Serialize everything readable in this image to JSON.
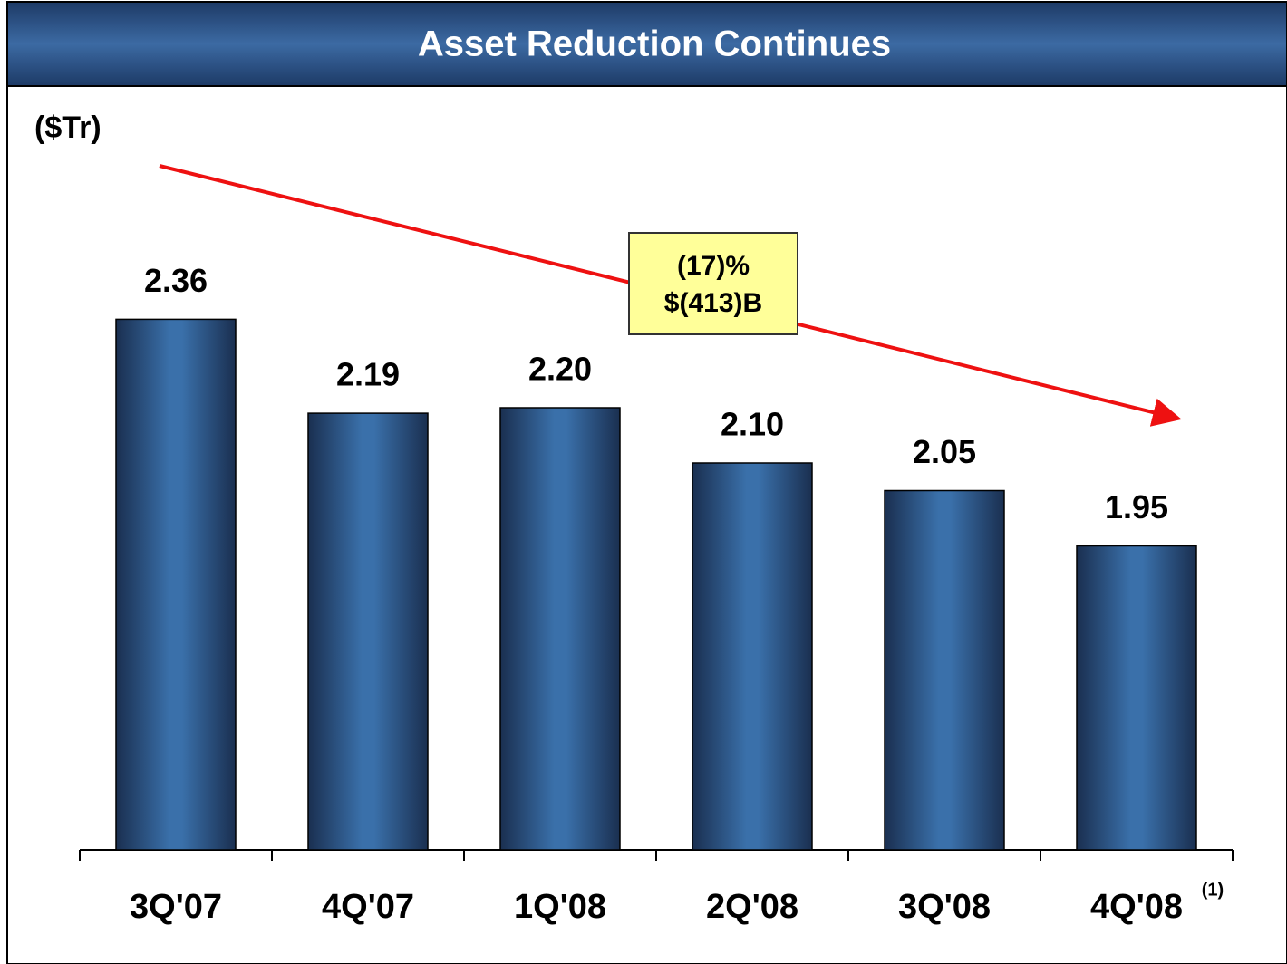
{
  "chart_data": {
    "type": "bar",
    "title": "Asset Reduction Continues",
    "unit_label": "($Tr)",
    "categories": [
      "3Q'07",
      "4Q'07",
      "1Q'08",
      "2Q'08",
      "3Q'08",
      "4Q'08"
    ],
    "values": [
      2.36,
      2.19,
      2.2,
      2.1,
      2.05,
      1.95
    ],
    "value_labels": [
      "2.36",
      "2.19",
      "2.20",
      "2.10",
      "2.05",
      "1.95"
    ],
    "color": "#2f65a0",
    "ylim": [
      1.4,
      2.7
    ],
    "annotations": [
      "(17)%",
      "$(413)B"
    ],
    "footnote_marker": "(1)"
  }
}
